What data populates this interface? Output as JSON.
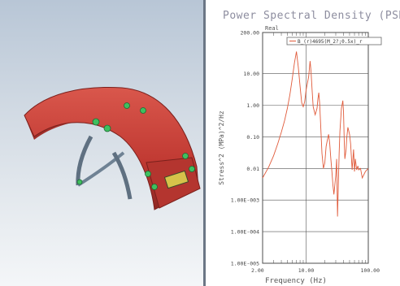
{
  "model_view": {
    "part": "fender",
    "colors": {
      "part_red": "#c8413a",
      "bracket_gray": "#6f8294",
      "mount_point_green": "#3fbf5f",
      "clip_yellow": "#d6c24a"
    }
  },
  "chart_data": {
    "type": "line",
    "title": "Power Spectral Density (PSD",
    "subtitle": "Real",
    "legend": [
      "B_(r)4695(M_2?;0.5x)_r"
    ],
    "xlabel": "Frequency (Hz)",
    "ylabel": "Stress^2 (MPa)^2/Hz",
    "xscale": "log",
    "yscale": "log",
    "xlim": [
      2.0,
      100.0
    ],
    "ylim": [
      1e-05,
      200.0
    ],
    "grid": true,
    "x_ticks": [
      "2.00",
      "10.00",
      "100.00"
    ],
    "x_tick_values": [
      2,
      10,
      100
    ],
    "y_ticks": [
      "200.00",
      "10.00",
      "1.00",
      "0.10",
      "0.01",
      "1.00E-003",
      "1.00E-004",
      "1.00E-005"
    ],
    "y_tick_values": [
      200,
      10,
      1,
      0.1,
      0.01,
      0.001,
      0.0001,
      1e-05
    ],
    "series": [
      {
        "color": "#e05a3a",
        "x": [
          2.0,
          2.5,
          3.0,
          3.5,
          4.0,
          4.5,
          5.0,
          5.5,
          6.0,
          6.5,
          7.0,
          7.5,
          8.0,
          8.5,
          9.0,
          9.5,
          10.0,
          11.0,
          11.6,
          12.0,
          12.5,
          13.0,
          14.0,
          15.0,
          15.5,
          16.0,
          16.5,
          17.0,
          18.0,
          19.0,
          20.0,
          21.0,
          22.0,
          23.0,
          24.0,
          25.0,
          26.0,
          27.0,
          28.0,
          30.0,
          31.0,
          32.0,
          33.0,
          34.0,
          35.0,
          37.0,
          39.0,
          40.0,
          41.0,
          42.0,
          44.0,
          45.0,
          47.0,
          50.0,
          52.0,
          55.0,
          58.0,
          60.0,
          62.0,
          65.0,
          68.0,
          70.0,
          75.0,
          80.0,
          90.0,
          100.0
        ],
        "y": [
          0.005,
          0.011,
          0.025,
          0.06,
          0.14,
          0.32,
          0.8,
          2.2,
          7.0,
          22.0,
          50.0,
          16.0,
          4.0,
          1.2,
          0.9,
          1.3,
          3.0,
          8.0,
          25.0,
          12.0,
          3.0,
          0.9,
          0.5,
          0.8,
          1.6,
          2.5,
          1.2,
          0.35,
          0.03,
          0.01,
          0.015,
          0.05,
          0.08,
          0.12,
          0.06,
          0.02,
          0.008,
          0.003,
          0.0015,
          0.006,
          0.02,
          0.0003,
          0.003,
          0.03,
          0.15,
          0.8,
          1.4,
          0.6,
          0.08,
          0.02,
          0.04,
          0.09,
          0.2,
          0.12,
          0.06,
          0.009,
          0.04,
          0.008,
          0.02,
          0.009,
          0.012,
          0.009,
          0.01,
          0.005,
          0.008,
          0.01
        ]
      }
    ]
  }
}
